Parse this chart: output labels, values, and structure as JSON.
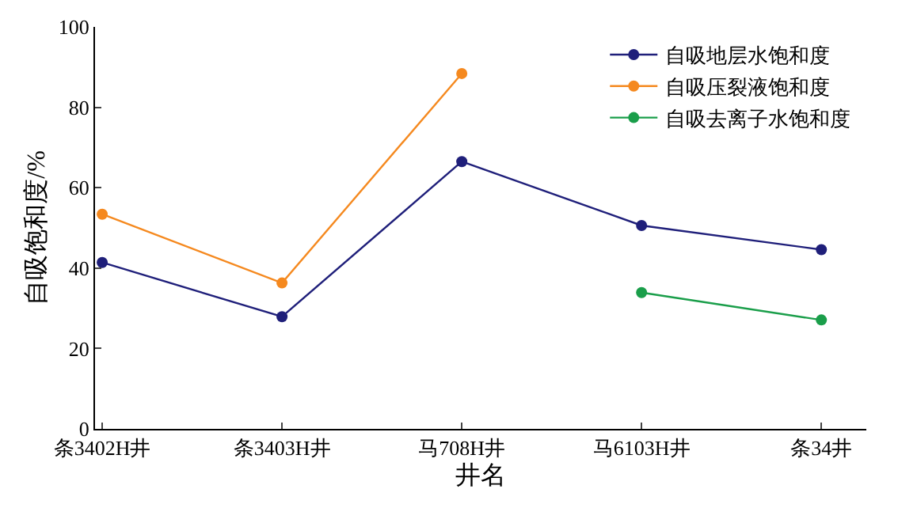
{
  "chart_data": {
    "type": "line",
    "xlabel": "井名",
    "ylabel": "自吸饱和度/%",
    "categories": [
      "条3402H井",
      "条3403H井",
      "马708H井",
      "马6103H井",
      "条34井"
    ],
    "series": [
      {
        "name": "自吸地层水饱和度",
        "color": "#1f1f7a",
        "values": [
          41.4,
          27.9,
          66.5,
          50.6,
          44.6
        ]
      },
      {
        "name": "自吸压裂液饱和度",
        "color": "#f5891f",
        "values": [
          53.4,
          36.3,
          88.4,
          null,
          null
        ]
      },
      {
        "name": "自吸去离子水饱和度",
        "color": "#1a9e4a",
        "values": [
          null,
          null,
          null,
          33.9,
          27.1
        ]
      }
    ],
    "ylim": [
      0,
      100
    ],
    "yticks": [
      0,
      20,
      40,
      60,
      80,
      100
    ],
    "legend": "top right",
    "marker": "circle",
    "line_style": "solid"
  }
}
